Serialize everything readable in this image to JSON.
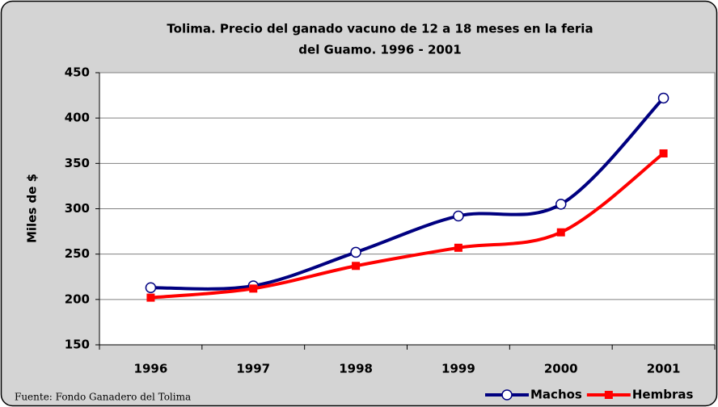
{
  "chart_data": {
    "type": "line",
    "title": [
      "Tolima. Precio del ganado vacuno de 12 a 18 meses en la feria",
      "del Guamo. 1996 - 2001"
    ],
    "y_label": "Miles de $",
    "source": "Fuente: Fondo Ganadero del Tolima",
    "categories": [
      "1996",
      "1997",
      "1998",
      "1999",
      "2000",
      "2001"
    ],
    "series": [
      {
        "name": "Machos",
        "color": "#000080",
        "values": [
          213,
          215,
          252,
          292,
          305,
          422
        ]
      },
      {
        "name": "Hembras",
        "color": "#ff0000",
        "values": [
          202,
          212,
          237,
          257,
          274,
          361
        ]
      }
    ],
    "ylim": [
      150,
      450
    ],
    "yticks": [
      150,
      200,
      250,
      300,
      350,
      400,
      450
    ],
    "grid": true,
    "legend": "bottom-right"
  }
}
